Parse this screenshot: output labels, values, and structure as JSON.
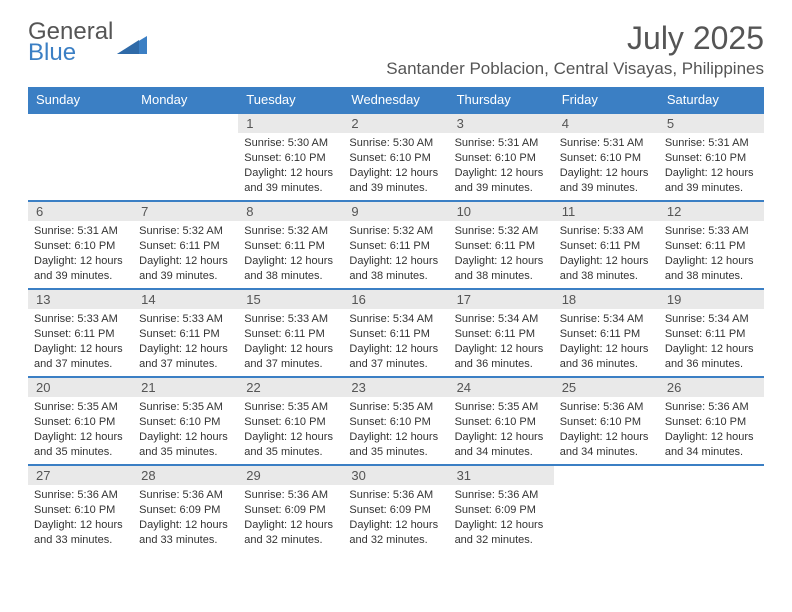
{
  "brand": {
    "word1": "General",
    "word2": "Blue"
  },
  "title": {
    "month": "July 2025",
    "location": "Santander Poblacion, Central Visayas, Philippines"
  },
  "colors": {
    "accent": "#3b7fc4",
    "header_text": "#ffffff",
    "daynum_bg": "#e9e9e9",
    "text": "#333333",
    "muted": "#555555"
  },
  "fonts": {
    "title_size": 32,
    "location_size": 17,
    "header_size": 13,
    "daynum_size": 13,
    "body_size": 11
  },
  "days_of_week": [
    "Sunday",
    "Monday",
    "Tuesday",
    "Wednesday",
    "Thursday",
    "Friday",
    "Saturday"
  ],
  "grid": {
    "leading_blanks": 2,
    "cells": [
      {
        "n": "1",
        "sunrise": "Sunrise: 5:30 AM",
        "sunset": "Sunset: 6:10 PM",
        "dl1": "Daylight: 12 hours",
        "dl2": "and 39 minutes."
      },
      {
        "n": "2",
        "sunrise": "Sunrise: 5:30 AM",
        "sunset": "Sunset: 6:10 PM",
        "dl1": "Daylight: 12 hours",
        "dl2": "and 39 minutes."
      },
      {
        "n": "3",
        "sunrise": "Sunrise: 5:31 AM",
        "sunset": "Sunset: 6:10 PM",
        "dl1": "Daylight: 12 hours",
        "dl2": "and 39 minutes."
      },
      {
        "n": "4",
        "sunrise": "Sunrise: 5:31 AM",
        "sunset": "Sunset: 6:10 PM",
        "dl1": "Daylight: 12 hours",
        "dl2": "and 39 minutes."
      },
      {
        "n": "5",
        "sunrise": "Sunrise: 5:31 AM",
        "sunset": "Sunset: 6:10 PM",
        "dl1": "Daylight: 12 hours",
        "dl2": "and 39 minutes."
      },
      {
        "n": "6",
        "sunrise": "Sunrise: 5:31 AM",
        "sunset": "Sunset: 6:10 PM",
        "dl1": "Daylight: 12 hours",
        "dl2": "and 39 minutes."
      },
      {
        "n": "7",
        "sunrise": "Sunrise: 5:32 AM",
        "sunset": "Sunset: 6:11 PM",
        "dl1": "Daylight: 12 hours",
        "dl2": "and 39 minutes."
      },
      {
        "n": "8",
        "sunrise": "Sunrise: 5:32 AM",
        "sunset": "Sunset: 6:11 PM",
        "dl1": "Daylight: 12 hours",
        "dl2": "and 38 minutes."
      },
      {
        "n": "9",
        "sunrise": "Sunrise: 5:32 AM",
        "sunset": "Sunset: 6:11 PM",
        "dl1": "Daylight: 12 hours",
        "dl2": "and 38 minutes."
      },
      {
        "n": "10",
        "sunrise": "Sunrise: 5:32 AM",
        "sunset": "Sunset: 6:11 PM",
        "dl1": "Daylight: 12 hours",
        "dl2": "and 38 minutes."
      },
      {
        "n": "11",
        "sunrise": "Sunrise: 5:33 AM",
        "sunset": "Sunset: 6:11 PM",
        "dl1": "Daylight: 12 hours",
        "dl2": "and 38 minutes."
      },
      {
        "n": "12",
        "sunrise": "Sunrise: 5:33 AM",
        "sunset": "Sunset: 6:11 PM",
        "dl1": "Daylight: 12 hours",
        "dl2": "and 38 minutes."
      },
      {
        "n": "13",
        "sunrise": "Sunrise: 5:33 AM",
        "sunset": "Sunset: 6:11 PM",
        "dl1": "Daylight: 12 hours",
        "dl2": "and 37 minutes."
      },
      {
        "n": "14",
        "sunrise": "Sunrise: 5:33 AM",
        "sunset": "Sunset: 6:11 PM",
        "dl1": "Daylight: 12 hours",
        "dl2": "and 37 minutes."
      },
      {
        "n": "15",
        "sunrise": "Sunrise: 5:33 AM",
        "sunset": "Sunset: 6:11 PM",
        "dl1": "Daylight: 12 hours",
        "dl2": "and 37 minutes."
      },
      {
        "n": "16",
        "sunrise": "Sunrise: 5:34 AM",
        "sunset": "Sunset: 6:11 PM",
        "dl1": "Daylight: 12 hours",
        "dl2": "and 37 minutes."
      },
      {
        "n": "17",
        "sunrise": "Sunrise: 5:34 AM",
        "sunset": "Sunset: 6:11 PM",
        "dl1": "Daylight: 12 hours",
        "dl2": "and 36 minutes."
      },
      {
        "n": "18",
        "sunrise": "Sunrise: 5:34 AM",
        "sunset": "Sunset: 6:11 PM",
        "dl1": "Daylight: 12 hours",
        "dl2": "and 36 minutes."
      },
      {
        "n": "19",
        "sunrise": "Sunrise: 5:34 AM",
        "sunset": "Sunset: 6:11 PM",
        "dl1": "Daylight: 12 hours",
        "dl2": "and 36 minutes."
      },
      {
        "n": "20",
        "sunrise": "Sunrise: 5:35 AM",
        "sunset": "Sunset: 6:10 PM",
        "dl1": "Daylight: 12 hours",
        "dl2": "and 35 minutes."
      },
      {
        "n": "21",
        "sunrise": "Sunrise: 5:35 AM",
        "sunset": "Sunset: 6:10 PM",
        "dl1": "Daylight: 12 hours",
        "dl2": "and 35 minutes."
      },
      {
        "n": "22",
        "sunrise": "Sunrise: 5:35 AM",
        "sunset": "Sunset: 6:10 PM",
        "dl1": "Daylight: 12 hours",
        "dl2": "and 35 minutes."
      },
      {
        "n": "23",
        "sunrise": "Sunrise: 5:35 AM",
        "sunset": "Sunset: 6:10 PM",
        "dl1": "Daylight: 12 hours",
        "dl2": "and 35 minutes."
      },
      {
        "n": "24",
        "sunrise": "Sunrise: 5:35 AM",
        "sunset": "Sunset: 6:10 PM",
        "dl1": "Daylight: 12 hours",
        "dl2": "and 34 minutes."
      },
      {
        "n": "25",
        "sunrise": "Sunrise: 5:36 AM",
        "sunset": "Sunset: 6:10 PM",
        "dl1": "Daylight: 12 hours",
        "dl2": "and 34 minutes."
      },
      {
        "n": "26",
        "sunrise": "Sunrise: 5:36 AM",
        "sunset": "Sunset: 6:10 PM",
        "dl1": "Daylight: 12 hours",
        "dl2": "and 34 minutes."
      },
      {
        "n": "27",
        "sunrise": "Sunrise: 5:36 AM",
        "sunset": "Sunset: 6:10 PM",
        "dl1": "Daylight: 12 hours",
        "dl2": "and 33 minutes."
      },
      {
        "n": "28",
        "sunrise": "Sunrise: 5:36 AM",
        "sunset": "Sunset: 6:09 PM",
        "dl1": "Daylight: 12 hours",
        "dl2": "and 33 minutes."
      },
      {
        "n": "29",
        "sunrise": "Sunrise: 5:36 AM",
        "sunset": "Sunset: 6:09 PM",
        "dl1": "Daylight: 12 hours",
        "dl2": "and 32 minutes."
      },
      {
        "n": "30",
        "sunrise": "Sunrise: 5:36 AM",
        "sunset": "Sunset: 6:09 PM",
        "dl1": "Daylight: 12 hours",
        "dl2": "and 32 minutes."
      },
      {
        "n": "31",
        "sunrise": "Sunrise: 5:36 AM",
        "sunset": "Sunset: 6:09 PM",
        "dl1": "Daylight: 12 hours",
        "dl2": "and 32 minutes."
      }
    ]
  }
}
